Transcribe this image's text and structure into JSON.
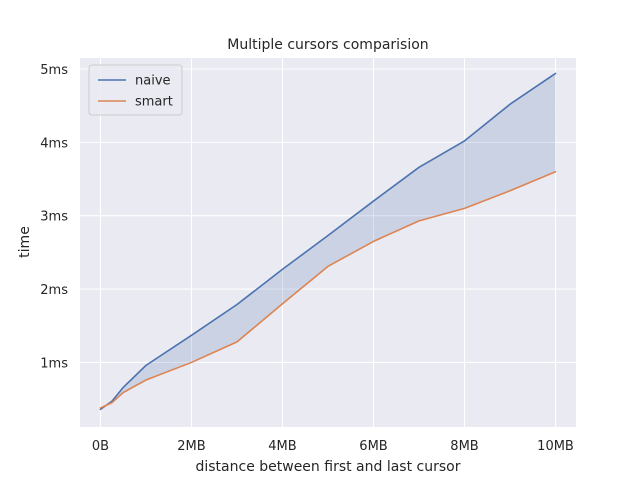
{
  "chart_data": {
    "type": "line",
    "title": "Multiple cursors comparision",
    "xlabel": "distance between first and last cursor",
    "ylabel": "time",
    "x": [
      0,
      0.25,
      0.5,
      1,
      2,
      3,
      4,
      5,
      6,
      7,
      8,
      9,
      10
    ],
    "series": [
      {
        "name": "naive",
        "color": "#4c72b0",
        "values": [
          0.36,
          0.47,
          0.66,
          0.96,
          1.37,
          1.79,
          2.27,
          2.73,
          3.2,
          3.66,
          4.02,
          4.52,
          4.94
        ]
      },
      {
        "name": "smart",
        "color": "#dd8452",
        "values": [
          0.38,
          0.45,
          0.59,
          0.76,
          1.0,
          1.28,
          1.8,
          2.31,
          2.65,
          2.93,
          3.1,
          3.34,
          3.6
        ]
      }
    ],
    "fill_between": {
      "series": [
        "naive",
        "smart"
      ],
      "color": "#4c72b0",
      "opacity": 0.2
    },
    "xlim": [
      -0.45,
      10.45
    ],
    "ylim": [
      0.12,
      5.15
    ],
    "xticks": [
      0,
      2,
      4,
      6,
      8,
      10
    ],
    "xtick_labels": [
      "0B",
      "2MB",
      "4MB",
      "6MB",
      "8MB",
      "10MB"
    ],
    "yticks": [
      1,
      2,
      3,
      4,
      5
    ],
    "ytick_labels": [
      "1ms",
      "2ms",
      "3ms",
      "4ms",
      "5ms"
    ],
    "grid": true,
    "legend_position": "top-left",
    "background_color": "#eaeaf2"
  }
}
